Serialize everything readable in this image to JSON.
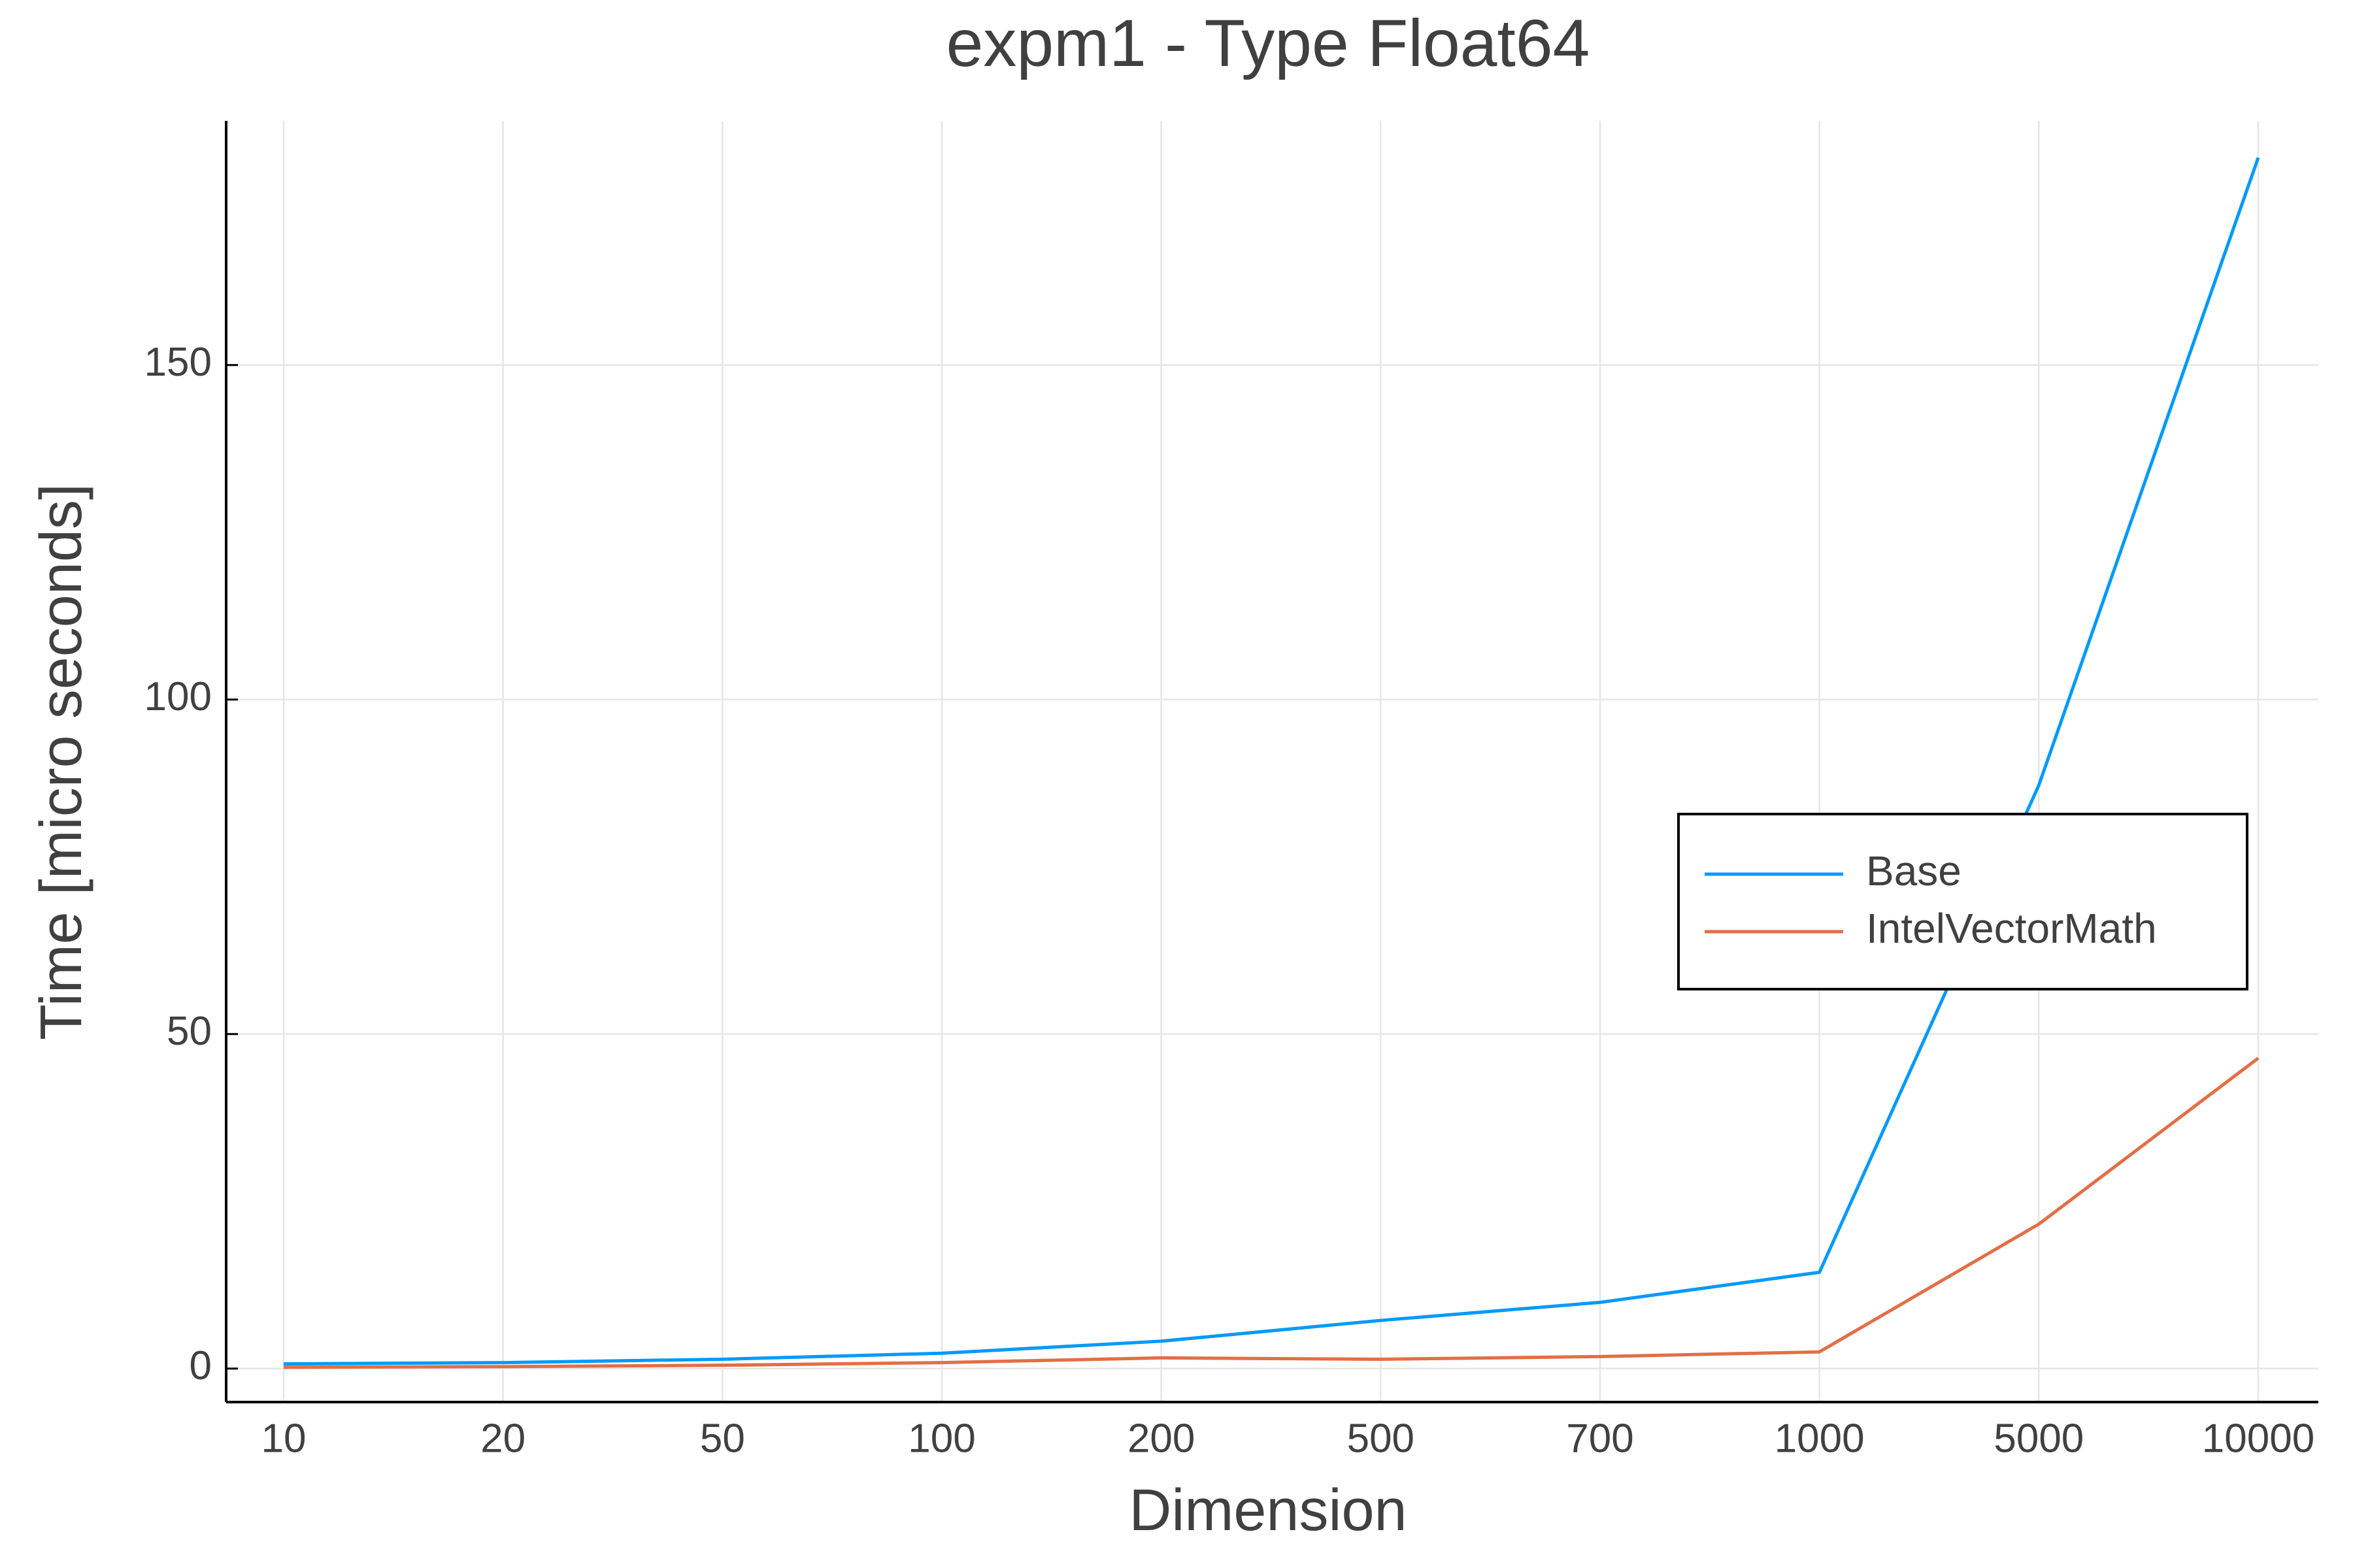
{
  "chart_data": {
    "type": "line",
    "title": "expm1 - Type Float64",
    "x_label": "Dimension",
    "y_label": "Time [micro seconds]",
    "categories": [
      "10",
      "20",
      "50",
      "100",
      "200",
      "500",
      "700",
      "1000",
      "5000",
      "10000"
    ],
    "series": [
      {
        "name": "Base",
        "color": "#009af9",
        "values": [
          0.7,
          0.9,
          1.4,
          2.3,
          4.1,
          7.2,
          9.9,
          14.4,
          87.2,
          181
        ]
      },
      {
        "name": "IntelVectorMath",
        "color": "#e26f46",
        "values": [
          0.2,
          0.3,
          0.5,
          0.9,
          1.6,
          1.4,
          1.8,
          2.5,
          21.6,
          46.4
        ]
      }
    ],
    "ylim": [
      -5,
      186.5
    ],
    "yticks": [
      0,
      50,
      100,
      150
    ],
    "grid": true,
    "legend": "right"
  }
}
